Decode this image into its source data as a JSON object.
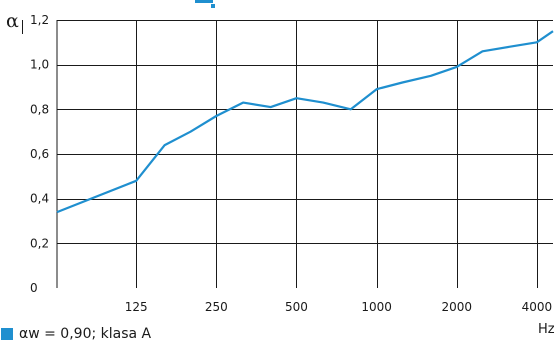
{
  "colors": {
    "series": "#1f8fcf",
    "grid": "#1a1a1a",
    "top_mark": "#1f8fcf"
  },
  "chart_data": {
    "type": "line",
    "ylabel": "α",
    "xlabel": "Hz",
    "ylim": [
      0,
      1.2
    ],
    "y_ticks": [
      "0",
      "0,2",
      "0,4",
      "0,6",
      "0,8",
      "1,0",
      "1,2"
    ],
    "y_tick_values": [
      0,
      0.2,
      0.4,
      0.6,
      0.8,
      1.0,
      1.2
    ],
    "x_ticks": [
      "125",
      "250",
      "500",
      "1000",
      "2000",
      "4000"
    ],
    "x_tick_values": [
      125,
      250,
      500,
      1000,
      2000,
      4000
    ],
    "xlim": [
      63,
      4600
    ],
    "x_scale": "log",
    "grid": true,
    "series": [
      {
        "name": "αw = 0,90; klasa A",
        "x": [
          63,
          125,
          160,
          200,
          250,
          315,
          400,
          500,
          630,
          800,
          1000,
          1250,
          1600,
          2000,
          2500,
          3150,
          4000,
          4600
        ],
        "values": [
          0.34,
          0.48,
          0.64,
          0.7,
          0.77,
          0.83,
          0.81,
          0.85,
          0.83,
          0.8,
          0.89,
          0.92,
          0.95,
          0.99,
          1.06,
          1.08,
          1.1,
          1.15
        ]
      }
    ]
  },
  "legend": {
    "text": "αw = 0,90; klasa A"
  }
}
